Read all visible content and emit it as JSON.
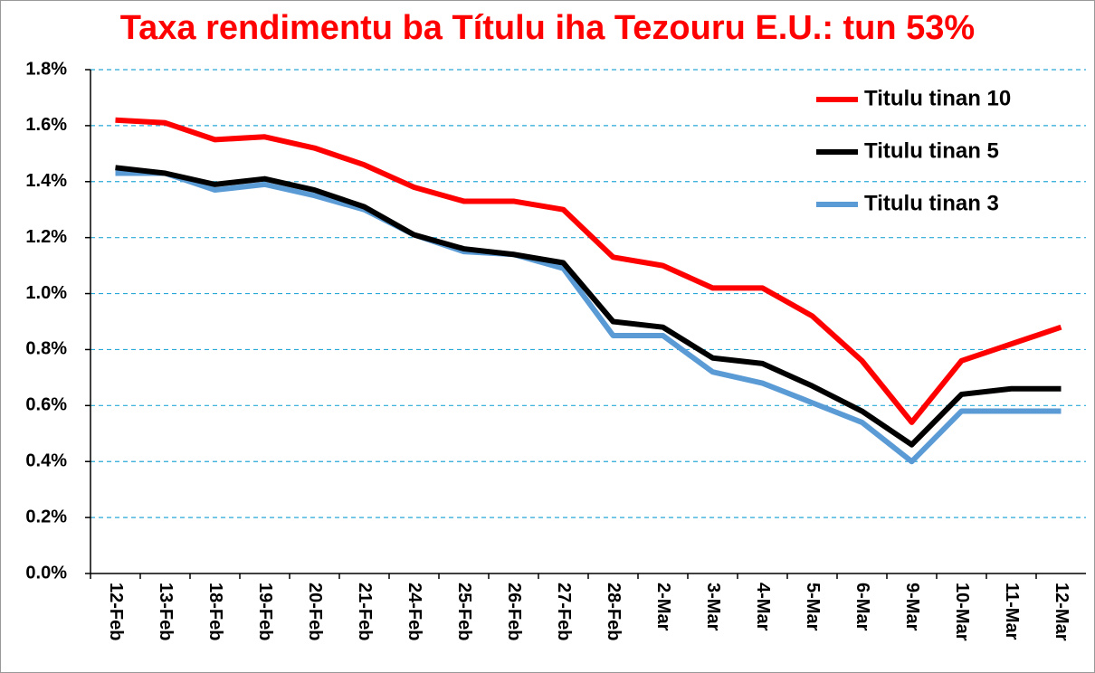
{
  "chart_data": {
    "type": "line",
    "title": "Taxa rendimentu ba Títulu iha Tezouru E.U.: tun 53%",
    "categories": [
      "12-Feb",
      "13-Feb",
      "18-Feb",
      "19-Feb",
      "20-Feb",
      "21-Feb",
      "24-Feb",
      "25-Feb",
      "26-Feb",
      "27-Feb",
      "28-Feb",
      "2-Mar",
      "3-Mar",
      "4-Mar",
      "5-Mar",
      "6-Mar",
      "9-Mar",
      "10-Mar",
      "11-Mar",
      "12-Mar"
    ],
    "series": [
      {
        "name": "Titulu tinan 10",
        "color": "#ff0000",
        "values": [
          1.62,
          1.61,
          1.55,
          1.56,
          1.52,
          1.46,
          1.38,
          1.33,
          1.33,
          1.3,
          1.13,
          1.1,
          1.02,
          1.02,
          0.92,
          0.76,
          0.54,
          0.76,
          0.82,
          0.88
        ]
      },
      {
        "name": "Titulu tinan 5",
        "color": "#000000",
        "values": [
          1.45,
          1.43,
          1.39,
          1.41,
          1.37,
          1.31,
          1.21,
          1.16,
          1.14,
          1.11,
          0.9,
          0.88,
          0.77,
          0.75,
          0.67,
          0.58,
          0.46,
          0.64,
          0.66,
          0.66
        ]
      },
      {
        "name": "Titulu tinan 3",
        "color": "#5b9bd5",
        "values": [
          1.43,
          1.43,
          1.37,
          1.39,
          1.35,
          1.3,
          1.21,
          1.15,
          1.14,
          1.09,
          0.85,
          0.85,
          0.72,
          0.68,
          0.61,
          0.54,
          0.4,
          0.58,
          0.58,
          0.58
        ]
      }
    ],
    "ylim": [
      0,
      1.8
    ],
    "yticks": [
      {
        "value": 0,
        "label": "0.0%"
      },
      {
        "value": 0.2,
        "label": "0.2%"
      },
      {
        "value": 0.4,
        "label": "0.4%"
      },
      {
        "value": 0.6,
        "label": "0.6%"
      },
      {
        "value": 0.8,
        "label": "0.8%"
      },
      {
        "value": 1.0,
        "label": "1.0%"
      },
      {
        "value": 1.2,
        "label": "1.2%"
      },
      {
        "value": 1.4,
        "label": "1.4%"
      },
      {
        "value": 1.6,
        "label": "1.6%"
      },
      {
        "value": 1.8,
        "label": "1.8%"
      }
    ],
    "grid": true,
    "legend": "upper right"
  }
}
